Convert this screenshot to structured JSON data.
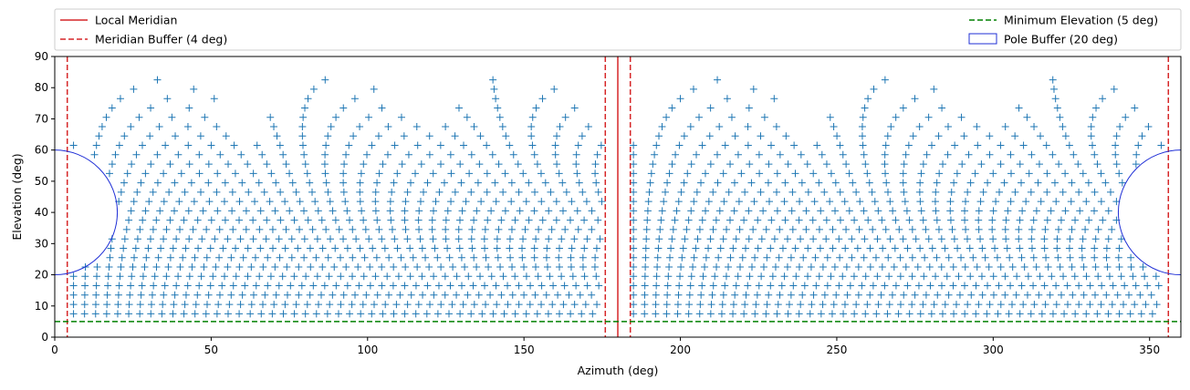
{
  "chart_data": {
    "type": "scatter",
    "title": "",
    "xlabel": "Azimuth (deg)",
    "ylabel": "Elevation (deg)",
    "xlim": [
      0,
      360
    ],
    "ylim": [
      0,
      90
    ],
    "xticks": [
      0,
      50,
      100,
      150,
      200,
      250,
      300,
      350
    ],
    "yticks": [
      0,
      10,
      20,
      30,
      40,
      50,
      60,
      70,
      80,
      90
    ],
    "grid": false,
    "legend": {
      "placement": "above-plot",
      "items": [
        {
          "label": "Local Meridian",
          "style": "solid-line",
          "color": "#d62728"
        },
        {
          "label": "Meridian Buffer (4 deg)",
          "style": "dashed-line",
          "color": "#d62728"
        },
        {
          "label": "Minimum Elevation (5 deg)",
          "style": "dashed-line",
          "color": "#008000"
        },
        {
          "label": "Pole Buffer (20 deg)",
          "style": "patch-outline",
          "color": "#1f2fd6"
        }
      ]
    },
    "reference_lines": {
      "local_meridian_az": 180,
      "meridian_buffer_az": [
        4,
        176,
        184,
        356
      ],
      "minimum_elevation": 5
    },
    "pole_buffer": {
      "radius_deg": 20,
      "centers": [
        [
          0,
          40
        ],
        [
          360,
          40
        ]
      ]
    },
    "grid_points": {
      "marker": "+",
      "color": "#1f77b4",
      "elevation_range": [
        7.5,
        85.5
      ],
      "elevation_step": 3,
      "azimuth_range_east": [
        6,
        175
      ],
      "azimuth_range_west": [
        185,
        354
      ],
      "excluded": "points inside pole buffer circles"
    }
  }
}
